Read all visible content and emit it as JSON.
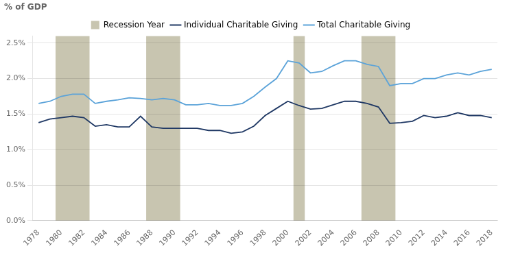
{
  "chart_data": {
    "type": "line",
    "ylabel": "% of GDP",
    "x": [
      1978,
      1979,
      1980,
      1981,
      1982,
      1983,
      1984,
      1985,
      1986,
      1987,
      1988,
      1989,
      1990,
      1991,
      1992,
      1993,
      1994,
      1995,
      1996,
      1997,
      1998,
      1999,
      2000,
      2001,
      2002,
      2003,
      2004,
      2005,
      2006,
      2007,
      2008,
      2009,
      2010,
      2011,
      2012,
      2013,
      2014,
      2015,
      2016,
      2017,
      2018
    ],
    "series": [
      {
        "name": "Individual Charitable Giving",
        "color": "#1f3864",
        "values": [
          0.0138,
          0.0143,
          0.0145,
          0.0147,
          0.0145,
          0.0133,
          0.0135,
          0.0132,
          0.0132,
          0.0147,
          0.0132,
          0.013,
          0.013,
          0.013,
          0.013,
          0.0127,
          0.0127,
          0.0123,
          0.0125,
          0.0133,
          0.0148,
          0.0158,
          0.0168,
          0.0162,
          0.0157,
          0.0158,
          0.0163,
          0.0168,
          0.0168,
          0.0165,
          0.016,
          0.0137,
          0.0138,
          0.014,
          0.0148,
          0.0145,
          0.0147,
          0.0152,
          0.0148,
          0.0148,
          0.0145
        ]
      },
      {
        "name": "Total Charitable Giving",
        "color": "#5ba3d9",
        "values": [
          0.0165,
          0.0168,
          0.0175,
          0.0178,
          0.0178,
          0.0165,
          0.0168,
          0.017,
          0.0173,
          0.0172,
          0.017,
          0.0172,
          0.017,
          0.0163,
          0.0163,
          0.0165,
          0.0162,
          0.0162,
          0.0165,
          0.0175,
          0.0188,
          0.02,
          0.0225,
          0.0222,
          0.0208,
          0.021,
          0.0218,
          0.0225,
          0.0225,
          0.022,
          0.0217,
          0.019,
          0.0193,
          0.0193,
          0.02,
          0.02,
          0.0205,
          0.0208,
          0.0205,
          0.021,
          0.0213
        ]
      }
    ],
    "recession_bands": {
      "name": "Recession Year",
      "color": "#c8c5b0",
      "values": [
        [
          1980,
          1982
        ],
        [
          1988,
          1990
        ],
        [
          2001,
          2001
        ],
        [
          2007,
          2009
        ]
      ]
    },
    "xlim": [
      1977.5,
      2018.5
    ],
    "xticks": [
      1978,
      1980,
      1982,
      1984,
      1986,
      1988,
      1990,
      1992,
      1994,
      1996,
      1998,
      2000,
      2002,
      2004,
      2006,
      2008,
      2010,
      2012,
      2014,
      2016,
      2018
    ],
    "ylim": [
      0.0,
      0.026
    ],
    "yticks": [
      {
        "value": 0.0,
        "label": "0.0%"
      },
      {
        "value": 0.005,
        "label": "0.5%"
      },
      {
        "value": 0.01,
        "label": "1.0%"
      },
      {
        "value": 0.015,
        "label": "1.5%"
      },
      {
        "value": 0.02,
        "label": "2.0%"
      },
      {
        "value": 0.025,
        "label": "2.5%"
      }
    ],
    "grid": "y",
    "legend": "top"
  }
}
